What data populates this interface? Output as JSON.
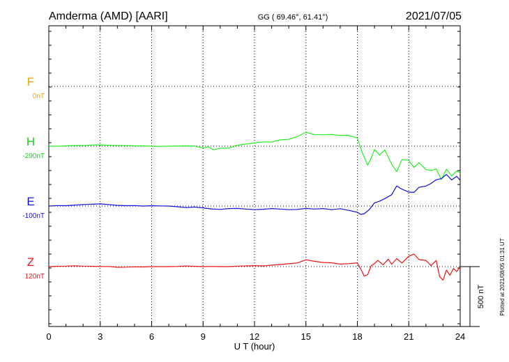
{
  "header": {
    "station": "Amderma (AMD)  [AARI]",
    "coords": "GG ( 69.46°,  61.41°)",
    "date": "2021/07/05"
  },
  "footer": {
    "plotted": "Plotted at 2021/08/05 01:31  UT"
  },
  "chart_data": {
    "type": "line",
    "title": "",
    "xlabel": "U T (hour)",
    "xlim": [
      0,
      24
    ],
    "xticks": [
      0,
      3,
      6,
      9,
      12,
      15,
      18,
      21,
      24
    ],
    "grid": true,
    "scale_bar": {
      "label": "500 nT",
      "value_nT": 500
    },
    "series": [
      {
        "name": "F",
        "baseline_label": "0nT",
        "color": "#f5a500",
        "label_color": "#f5a500",
        "x": [],
        "y": []
      },
      {
        "name": "H",
        "baseline_label": "-290nT",
        "color": "#22ee22",
        "label_color": "#1fcf1f",
        "x": [
          0,
          0.5,
          1,
          1.5,
          2,
          2.5,
          3,
          3.5,
          4,
          4.5,
          5,
          5.5,
          6,
          6.5,
          7,
          7.5,
          8,
          8.5,
          9,
          9.3,
          9.6,
          10,
          10.5,
          11,
          11.5,
          12,
          12.5,
          13,
          13.5,
          14,
          14.5,
          15,
          15.5,
          16,
          16.5,
          17,
          17.5,
          18,
          18.3,
          18.6,
          18.8,
          19,
          19.3,
          19.6,
          20,
          20.3,
          20.6,
          21,
          21.3,
          21.6,
          22,
          22.3,
          22.6,
          22.9,
          23.2,
          23.5,
          23.8,
          24
        ],
        "y": [
          0,
          0,
          3,
          6,
          5,
          10,
          11,
          8,
          6,
          5,
          3,
          3,
          0,
          -1,
          0,
          2,
          3,
          2,
          -17,
          -4,
          -30,
          -17,
          -16,
          8,
          18,
          27,
          36,
          35,
          53,
          57,
          81,
          117,
          97,
          95,
          98,
          89,
          90,
          68,
          -60,
          -158,
          -100,
          -28,
          -75,
          -30,
          -150,
          -212,
          -112,
          -118,
          -178,
          -138,
          -194,
          -204,
          -190,
          -278,
          -192,
          -249,
          -206,
          -224
        ]
      },
      {
        "name": "E",
        "baseline_label": "-100nT",
        "color": "#1111dd",
        "label_color": "#1111dd",
        "x": [
          0,
          0.5,
          1,
          1.5,
          2,
          2.5,
          3,
          3.5,
          4,
          4.5,
          5,
          5.5,
          6,
          6.5,
          7,
          7.5,
          8,
          8.5,
          9,
          9.5,
          10,
          10.5,
          11,
          11.5,
          12,
          12.5,
          13,
          13.5,
          14,
          14.5,
          15,
          15.5,
          16,
          16.5,
          17,
          17.5,
          18,
          18.2,
          18.4,
          18.7,
          19,
          19.3,
          19.6,
          20,
          20.3,
          20.6,
          21,
          21.3,
          21.6,
          22,
          22.3,
          22.6,
          22.9,
          23.2,
          23.5,
          23.8,
          24
        ],
        "y": [
          0,
          4,
          3,
          8,
          12,
          15,
          18,
          12,
          6,
          3,
          4,
          0,
          3,
          1,
          0,
          -6,
          -12,
          -8,
          -15,
          -24,
          -28,
          -21,
          -20,
          -25,
          -30,
          -27,
          -21,
          -25,
          -30,
          -28,
          -20,
          -25,
          -21,
          -30,
          -22,
          -36,
          -52,
          -70,
          -64,
          -29,
          27,
          41,
          62,
          95,
          168,
          141,
          117,
          114,
          157,
          167,
          189,
          220,
          229,
          264,
          218,
          248,
          215
        ]
      },
      {
        "name": "Z",
        "baseline_label": "120nT",
        "color": "#ee1111",
        "label_color": "#ee1111",
        "x": [
          0,
          0.5,
          1,
          1.5,
          2,
          2.5,
          3,
          3.5,
          4,
          4.5,
          5,
          5.5,
          6,
          6.5,
          7,
          7.5,
          8,
          8.5,
          9,
          9.5,
          10,
          10.5,
          11,
          11.5,
          12,
          12.5,
          13,
          13.5,
          14,
          14.5,
          15,
          15.5,
          16,
          16.5,
          17,
          17.5,
          18,
          18.2,
          18.4,
          18.6,
          18.8,
          19,
          19.2,
          19.5,
          19.8,
          20,
          20.3,
          20.6,
          21,
          21.3,
          21.6,
          22,
          22.3,
          22.6,
          22.8,
          23,
          23.2,
          23.4,
          23.6,
          23.8,
          24
        ],
        "y": [
          0,
          3,
          4,
          7,
          4,
          3,
          1,
          1,
          -5,
          -4,
          -2,
          -3,
          0,
          0,
          0,
          2,
          5,
          3,
          0,
          2,
          0,
          0,
          4,
          6,
          8,
          6,
          12,
          18,
          24,
          31,
          57,
          44,
          35,
          32,
          21,
          25,
          31,
          -20,
          -79,
          -67,
          6,
          26,
          52,
          15,
          63,
          20,
          67,
          30,
          88,
          105,
          59,
          52,
          8,
          51,
          -83,
          -112,
          -29,
          -72,
          -16,
          -40,
          -1
        ]
      }
    ]
  }
}
